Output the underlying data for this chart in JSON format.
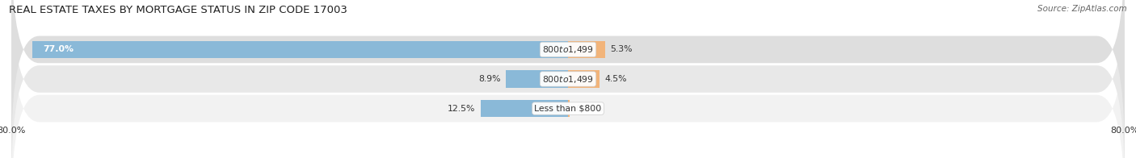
{
  "title": "REAL ESTATE TAXES BY MORTGAGE STATUS IN ZIP CODE 17003",
  "source": "Source: ZipAtlas.com",
  "rows": [
    {
      "label": "Less than $800",
      "without_mortgage": 12.5,
      "with_mortgage": 0.29
    },
    {
      "label": "$800 to $1,499",
      "without_mortgage": 8.9,
      "with_mortgage": 4.5
    },
    {
      "label": "$800 to $1,499",
      "without_mortgage": 77.0,
      "with_mortgage": 5.3
    }
  ],
  "xlim_left": -80.0,
  "xlim_right": 80.0,
  "x_left_label": "80.0%",
  "x_right_label": "80.0%",
  "color_without": "#8ab9d8",
  "color_with": "#f2b47a",
  "bar_height": 0.58,
  "row_bg_color_odd": "#f0f0f0",
  "row_bg_color_even": "#e6e6e6",
  "title_fontsize": 9.5,
  "source_fontsize": 7.5,
  "label_fontsize": 7.8,
  "tick_fontsize": 8,
  "legend_fontsize": 8,
  "title_color": "#222222",
  "source_color": "#666666",
  "label_color": "#333333",
  "text_white": "#ffffff",
  "bg_color": "#ffffff",
  "row_bg_colors": [
    "#f2f2f2",
    "#e8e8e8",
    "#dedede"
  ]
}
